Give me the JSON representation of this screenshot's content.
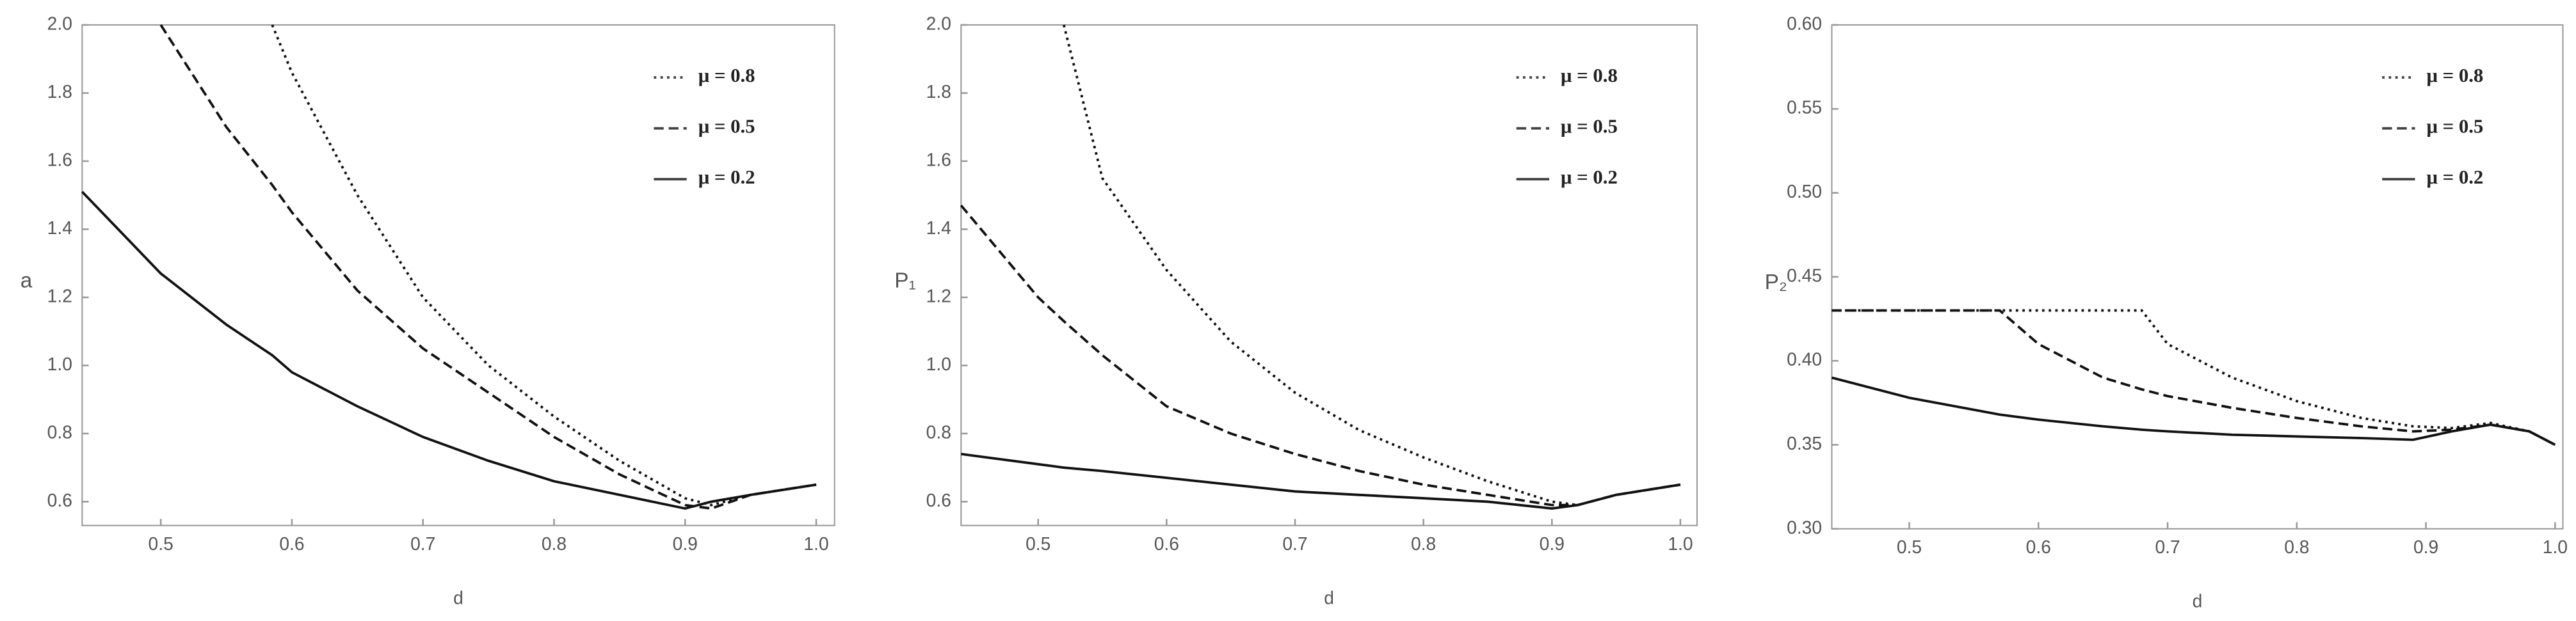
{
  "chart_data": [
    {
      "type": "line",
      "x_label": "d",
      "y_label": "a",
      "legend": "upper right",
      "xlim": [
        0.44,
        1.014
      ],
      "ylim": [
        0.53,
        2.0
      ],
      "xticks": [
        0.5,
        0.6,
        0.7,
        0.8,
        0.9,
        {
          "value": 1,
          "label": "1.0"
        }
      ],
      "yticks": [
        0.6,
        0.8,
        {
          "value": 1,
          "label": "1.0"
        },
        1.2,
        1.4,
        1.6,
        1.8,
        {
          "value": 2,
          "label": "2.0"
        }
      ],
      "x": [
        0.44,
        0.5,
        0.55,
        0.585,
        0.6,
        0.65,
        0.7,
        0.75,
        0.8,
        0.85,
        0.9,
        0.92,
        0.95,
        1.0
      ],
      "series": [
        {
          "name": "μ = 0.8",
          "style": "dotted",
          "color": "#111",
          "values": [
            null,
            null,
            null,
            2.0,
            1.86,
            1.5,
            1.2,
            1.0,
            0.85,
            0.72,
            0.61,
            0.59,
            0.62,
            0.65
          ]
        },
        {
          "name": "μ = 0.5",
          "style": "dashed",
          "color": "#111",
          "values": [
            null,
            2.0,
            1.7,
            1.53,
            1.45,
            1.22,
            1.05,
            0.92,
            0.79,
            0.68,
            0.59,
            0.58,
            0.62,
            0.65
          ]
        },
        {
          "name": "μ = 0.2",
          "style": "solid",
          "color": "#111",
          "values": [
            1.51,
            1.27,
            1.12,
            1.03,
            0.98,
            0.88,
            0.79,
            0.72,
            0.66,
            0.62,
            0.58,
            0.6,
            0.62,
            0.65
          ]
        }
      ]
    },
    {
      "type": "line",
      "x_label": "d",
      "y_label": "P₁",
      "legend": "upper right",
      "xlim": [
        0.44,
        1.013
      ],
      "ylim": [
        0.53,
        2.0
      ],
      "xticks": [
        0.5,
        0.6,
        0.7,
        0.8,
        0.9,
        {
          "value": 1,
          "label": "1.0"
        }
      ],
      "yticks": [
        0.6,
        0.8,
        {
          "value": 1,
          "label": "1.0"
        },
        1.2,
        1.4,
        1.6,
        1.8,
        {
          "value": 2,
          "label": "2.0"
        }
      ],
      "x": [
        0.44,
        0.5,
        0.52,
        0.55,
        0.6,
        0.65,
        0.7,
        0.75,
        0.8,
        0.85,
        0.9,
        0.92,
        0.95,
        1.0
      ],
      "series": [
        {
          "name": "μ = 0.8",
          "style": "dotted",
          "color": "#111",
          "values": [
            null,
            null,
            2.0,
            1.55,
            1.28,
            1.07,
            0.92,
            0.81,
            0.73,
            0.66,
            0.6,
            0.59,
            0.62,
            0.65
          ]
        },
        {
          "name": "μ = 0.5",
          "style": "dashed",
          "color": "#111",
          "values": [
            1.47,
            1.2,
            1.13,
            1.03,
            0.88,
            0.8,
            0.74,
            0.69,
            0.65,
            0.62,
            0.59,
            0.59,
            0.62,
            0.65
          ]
        },
        {
          "name": "μ = 0.2",
          "style": "solid",
          "color": "#111",
          "values": [
            0.74,
            0.71,
            0.7,
            0.69,
            0.67,
            0.65,
            0.63,
            0.62,
            0.61,
            0.6,
            0.58,
            0.59,
            0.62,
            0.65
          ]
        }
      ]
    },
    {
      "type": "line",
      "x_label": "d",
      "y_label": "P₂",
      "legend": "upper right",
      "xlim": [
        0.44,
        1.006
      ],
      "ylim": [
        0.3,
        0.6
      ],
      "xticks": [
        0.5,
        0.6,
        0.7,
        0.8,
        0.9,
        {
          "value": 1,
          "label": "1.0"
        }
      ],
      "yticks": [
        {
          "value": 0.3,
          "label": "0.30"
        },
        0.35,
        {
          "value": 0.4,
          "label": "0.40"
        },
        0.45,
        {
          "value": 0.5,
          "label": "0.50"
        },
        0.55,
        {
          "value": 0.6,
          "label": "0.60"
        }
      ],
      "x": [
        0.44,
        0.5,
        0.57,
        0.6,
        0.65,
        0.68,
        0.7,
        0.75,
        0.8,
        0.85,
        0.89,
        0.92,
        0.95,
        0.98,
        1.0
      ],
      "series": [
        {
          "name": "μ = 0.8",
          "style": "dotted",
          "color": "#111",
          "values": [
            0.43,
            0.43,
            0.43,
            0.43,
            0.43,
            0.43,
            0.41,
            0.39,
            0.376,
            0.366,
            0.361,
            0.36,
            0.363,
            0.358,
            0.35
          ]
        },
        {
          "name": "μ = 0.5",
          "style": "dashed",
          "color": "#111",
          "values": [
            0.43,
            0.43,
            0.43,
            0.41,
            0.39,
            0.383,
            0.379,
            0.372,
            0.366,
            0.361,
            0.358,
            0.359,
            0.362,
            0.358,
            0.35
          ]
        },
        {
          "name": "μ = 0.2",
          "style": "solid",
          "color": "#111",
          "values": [
            0.39,
            0.378,
            0.368,
            0.365,
            0.361,
            0.359,
            0.358,
            0.356,
            0.355,
            0.354,
            0.353,
            0.358,
            0.362,
            0.358,
            0.35
          ]
        }
      ]
    }
  ]
}
